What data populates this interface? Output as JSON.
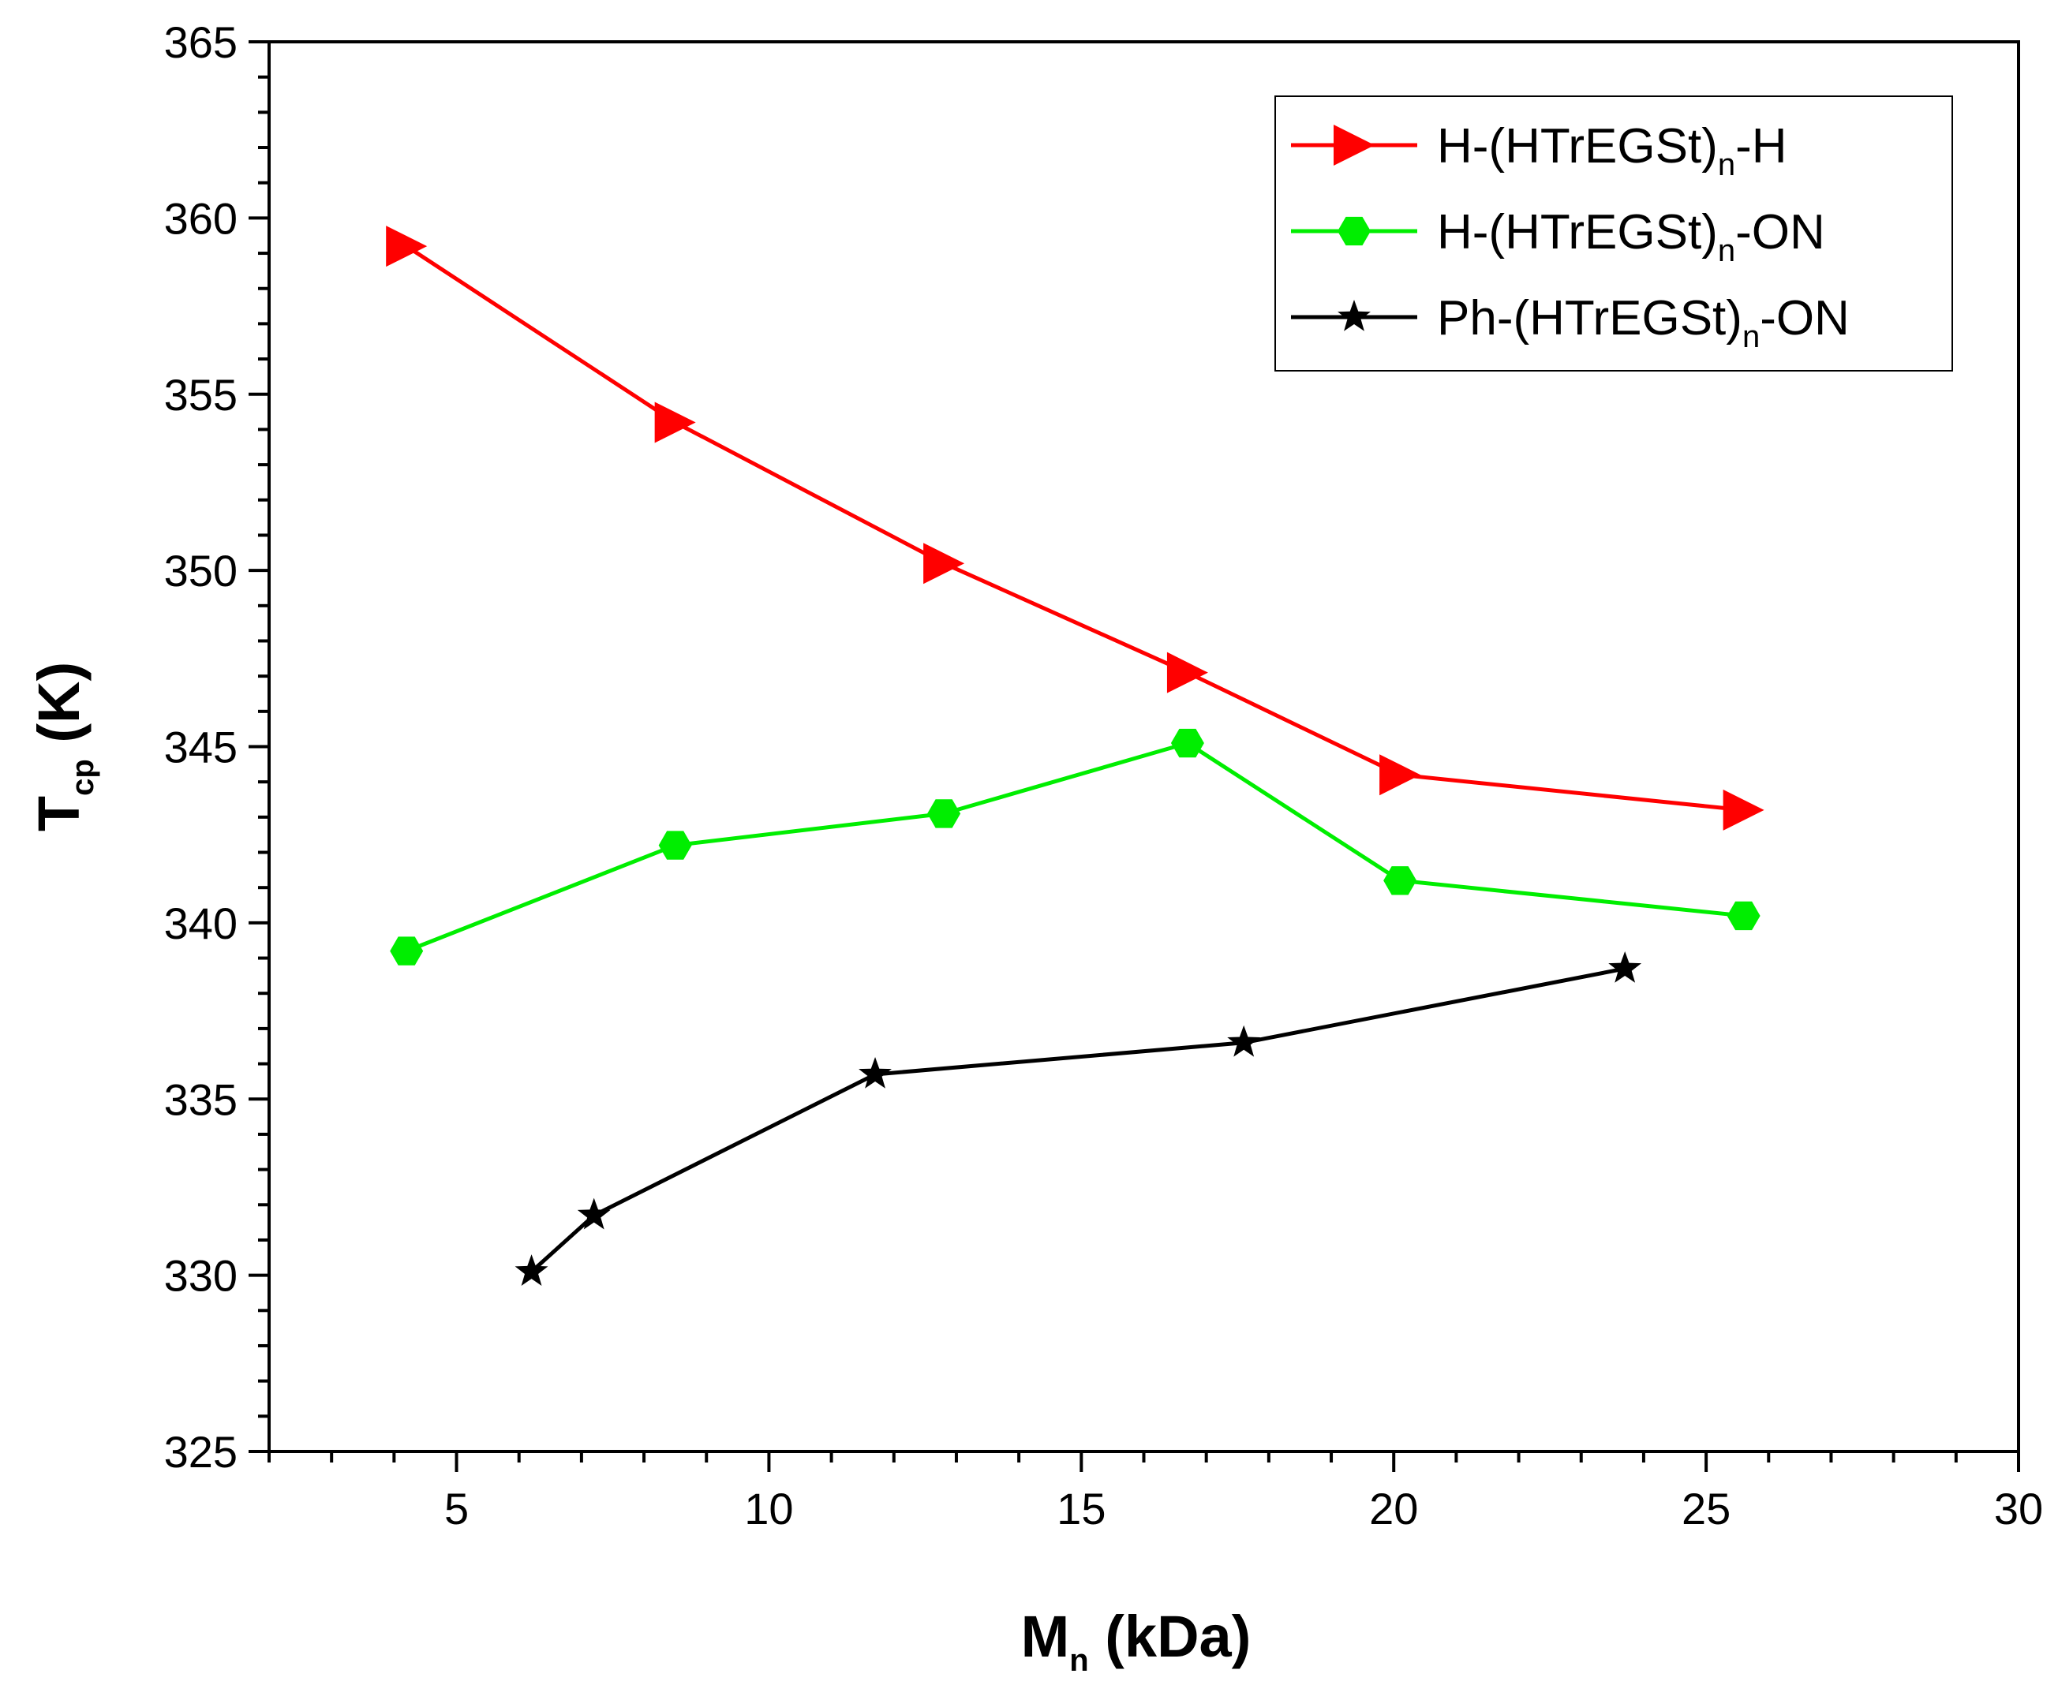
{
  "chart_data": {
    "type": "line",
    "xlabel": {
      "main": "M",
      "sub": "n",
      "rest": " (kDa)"
    },
    "ylabel": {
      "main": "T",
      "sub": "cp",
      "rest": " (K)"
    },
    "xlim": [
      2,
      30
    ],
    "ylim": [
      325,
      365
    ],
    "xticks": [
      5,
      10,
      15,
      20,
      25,
      30
    ],
    "yticks": [
      325,
      330,
      335,
      340,
      345,
      350,
      355,
      360,
      365
    ],
    "legend_position": "top-right",
    "series": [
      {
        "name": "H-(HTrEGSt)n-H",
        "legend": {
          "pre": "H-(HTrEGSt)",
          "sub": "n",
          "post": "-H"
        },
        "color": "#ff0000",
        "marker": "triangle-right",
        "x": [
          4.2,
          8.5,
          12.8,
          16.7,
          20.1,
          25.6
        ],
        "y": [
          359.2,
          354.2,
          350.2,
          347.1,
          344.2,
          343.2
        ]
      },
      {
        "name": "H-(HTrEGSt)n-ON",
        "legend": {
          "pre": "H-(HTrEGSt)",
          "sub": "n",
          "post": "-ON"
        },
        "color": "#00ee00",
        "marker": "hexagon",
        "x": [
          4.2,
          8.5,
          12.8,
          16.7,
          20.1,
          25.6
        ],
        "y": [
          339.2,
          342.2,
          343.1,
          345.1,
          341.2,
          340.2
        ]
      },
      {
        "name": "Ph-(HTrEGSt)n-ON",
        "legend": {
          "pre": "Ph-(HTrEGSt)",
          "sub": "n",
          "post": "-ON"
        },
        "color": "#000000",
        "marker": "star",
        "x": [
          6.2,
          7.2,
          11.7,
          17.6,
          23.7
        ],
        "y": [
          330.1,
          331.7,
          335.7,
          336.6,
          338.7
        ]
      }
    ]
  }
}
